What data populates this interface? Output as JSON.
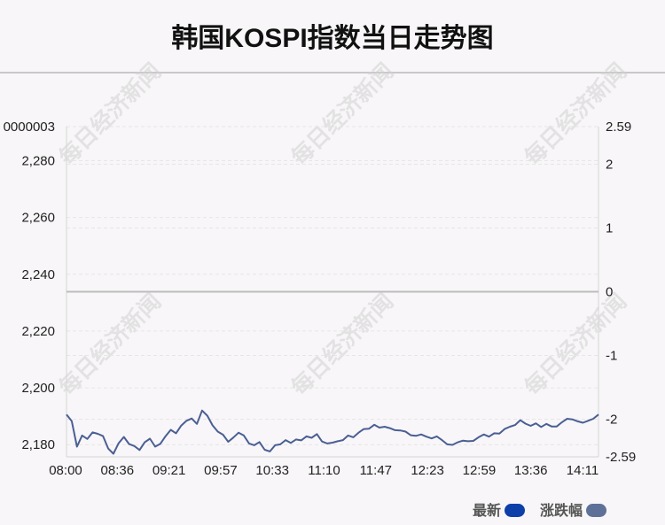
{
  "title": "韩国KOSPI指数当日走势图",
  "watermark": "每日经济新闻",
  "legend": [
    {
      "label": "最新",
      "color": "#0c3fa8"
    },
    {
      "label": "涨跌幅",
      "color": "#5f7199"
    }
  ],
  "colors": {
    "line": "#4a5f93",
    "zero_line": "#bdbdbd",
    "grid": "#e6e6e6",
    "text": "#222222"
  },
  "chart_data": {
    "type": "line",
    "title": "韩国KOSPI指数当日走势图",
    "x_tick_labels": [
      "08:00",
      "08:36",
      "09:21",
      "09:57",
      "10:33",
      "11:10",
      "11:47",
      "12:23",
      "12:59",
      "13:36",
      "14:11"
    ],
    "left_axis": {
      "top_label": "0000003",
      "tick_labels": [
        "2,280",
        "2,260",
        "2,240",
        "2,220",
        "2,200",
        "2,180"
      ],
      "tick_values": [
        2280,
        2260,
        2240,
        2220,
        2200,
        2180
      ],
      "range": [
        2175.7,
        2292.0
      ]
    },
    "right_axis": {
      "tick_labels": [
        "2.59",
        "2",
        "1",
        "0",
        "-1",
        "-2",
        "-2.59"
      ],
      "tick_values": [
        2.59,
        2,
        1,
        0,
        -1,
        -2,
        -2.59
      ],
      "range": [
        -2.59,
        2.59
      ]
    },
    "grid": true,
    "legend_position": "bottom-right",
    "series": [
      {
        "name": "最新",
        "axis": "left",
        "x_start": "08:00",
        "x_end": "14:11",
        "values": [
          2190.6,
          2188.3,
          2179.3,
          2183.2,
          2182.0,
          2184.3,
          2183.8,
          2183.0,
          2178.6,
          2176.8,
          2180.5,
          2182.7,
          2180.2,
          2179.5,
          2178.1,
          2180.8,
          2182.1,
          2179.3,
          2180.3,
          2183.0,
          2185.2,
          2184.0,
          2186.7,
          2188.4,
          2189.2,
          2187.3,
          2192.0,
          2190.2,
          2186.8,
          2184.6,
          2183.5,
          2181.0,
          2182.5,
          2184.2,
          2183.2,
          2180.4,
          2179.8,
          2180.9,
          2178.2,
          2177.6,
          2179.8,
          2180.1,
          2181.6,
          2180.6,
          2181.8,
          2181.5,
          2182.9,
          2182.4,
          2183.7,
          2181.1,
          2180.4,
          2180.7,
          2181.2,
          2181.6,
          2183.2,
          2182.6,
          2184.2,
          2185.5,
          2185.6,
          2187.0,
          2186.0,
          2186.3,
          2185.8,
          2185.1,
          2185.0,
          2184.6,
          2183.3,
          2183.1,
          2183.6,
          2182.8,
          2182.2,
          2182.9,
          2181.6,
          2180.1,
          2179.9,
          2180.8,
          2181.4,
          2181.2,
          2181.3,
          2182.6,
          2183.6,
          2182.8,
          2184.0,
          2183.9,
          2185.5,
          2186.3,
          2186.9,
          2188.6,
          2187.4,
          2186.6,
          2187.5,
          2186.2,
          2187.3,
          2186.4,
          2186.4,
          2187.9,
          2189.1,
          2188.9,
          2188.2,
          2187.7,
          2188.4,
          2189.1,
          2190.6
        ]
      }
    ]
  }
}
